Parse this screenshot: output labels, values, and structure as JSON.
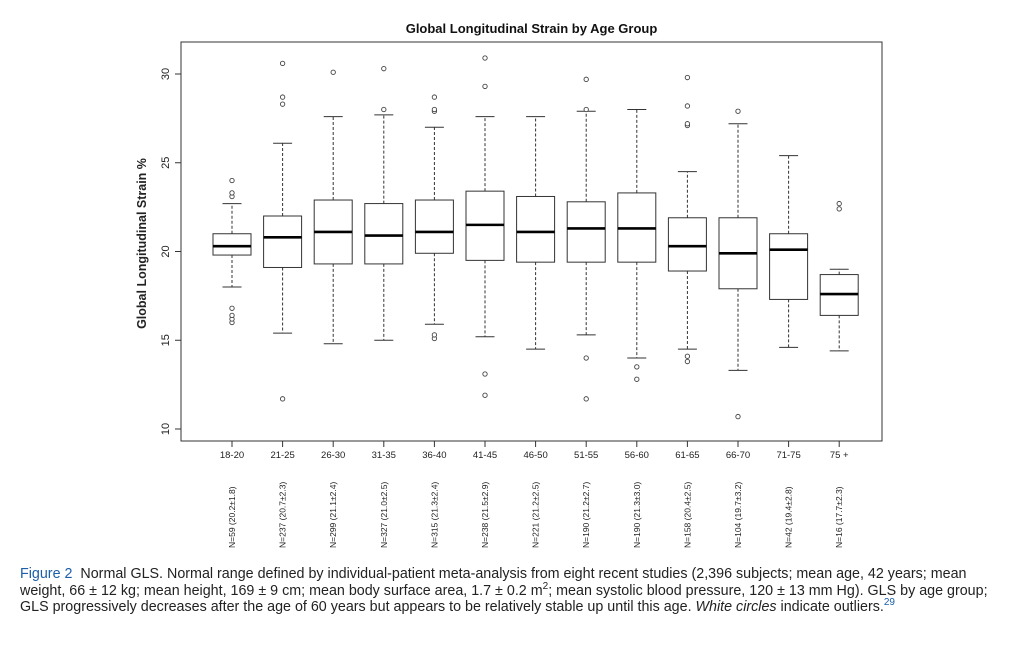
{
  "chart_data": {
    "type": "boxplot",
    "title": "Global Longitudinal Strain by Age Group",
    "ylabel": "Global Longitudinal Strain %",
    "xlabel": "",
    "ylim": [
      10,
      32
    ],
    "yticks": [
      "10",
      "15",
      "20",
      "25",
      "30"
    ],
    "grid": false,
    "groups": [
      {
        "label": "18-20",
        "n_label": "N=59 (20.2±1.8)",
        "whisker_low": 18.0,
        "q1": 19.8,
        "median": 20.3,
        "q3": 21.0,
        "whisker_high": 22.7,
        "outliers": [
          16.0,
          16.2,
          16.4,
          16.8,
          23.1,
          23.3,
          24.0
        ]
      },
      {
        "label": "21-25",
        "n_label": "N=237 (20.7±2.3)",
        "whisker_low": 15.4,
        "q1": 19.1,
        "median": 20.8,
        "q3": 22.0,
        "whisker_high": 26.1,
        "outliers": [
          11.7,
          28.3,
          28.7,
          30.6
        ]
      },
      {
        "label": "26-30",
        "n_label": "N=299 (21.1±2.4)",
        "whisker_low": 14.8,
        "q1": 19.3,
        "median": 21.1,
        "q3": 22.9,
        "whisker_high": 27.6,
        "outliers": [
          30.1
        ]
      },
      {
        "label": "31-35",
        "n_label": "N=327 (21.0±2.5)",
        "whisker_low": 15.0,
        "q1": 19.3,
        "median": 20.9,
        "q3": 22.7,
        "whisker_high": 27.7,
        "outliers": [
          28.0,
          30.3
        ]
      },
      {
        "label": "36-40",
        "n_label": "N=315 (21.3±2.4)",
        "whisker_low": 15.9,
        "q1": 19.9,
        "median": 21.1,
        "q3": 22.9,
        "whisker_high": 27.0,
        "outliers": [
          15.1,
          15.3,
          27.9,
          28.0,
          28.7
        ]
      },
      {
        "label": "41-45",
        "n_label": "N=238 (21.5±2.9)",
        "whisker_low": 15.2,
        "q1": 19.5,
        "median": 21.5,
        "q3": 23.4,
        "whisker_high": 27.6,
        "outliers": [
          11.9,
          13.1,
          29.3,
          30.9
        ]
      },
      {
        "label": "46-50",
        "n_label": "N=221 (21.2±2.5)",
        "whisker_low": 14.5,
        "q1": 19.4,
        "median": 21.1,
        "q3": 23.1,
        "whisker_high": 27.6,
        "outliers": []
      },
      {
        "label": "51-55",
        "n_label": "N=190 (21.2±2.7)",
        "whisker_low": 15.3,
        "q1": 19.4,
        "median": 21.3,
        "q3": 22.8,
        "whisker_high": 27.9,
        "outliers": [
          11.7,
          14.0,
          28.0,
          29.7
        ]
      },
      {
        "label": "56-60",
        "n_label": "N=190 (21.3±3.0)",
        "whisker_low": 14.0,
        "q1": 19.4,
        "median": 21.3,
        "q3": 23.3,
        "whisker_high": 28.0,
        "outliers": [
          12.8,
          13.5
        ]
      },
      {
        "label": "61-65",
        "n_label": "N=158 (20.4±2.5)",
        "whisker_low": 14.5,
        "q1": 18.9,
        "median": 20.3,
        "q3": 21.9,
        "whisker_high": 24.5,
        "outliers": [
          13.8,
          14.1,
          27.1,
          27.2,
          28.2,
          29.8
        ]
      },
      {
        "label": "66-70",
        "n_label": "N=104 (19.7±3.2)",
        "whisker_low": 13.3,
        "q1": 17.9,
        "median": 19.9,
        "q3": 21.9,
        "whisker_high": 27.2,
        "outliers": [
          10.7,
          27.9
        ]
      },
      {
        "label": "71-75",
        "n_label": "N=42 (19.4±2.8)",
        "whisker_low": 14.6,
        "q1": 17.3,
        "median": 20.1,
        "q3": 21.0,
        "whisker_high": 25.4,
        "outliers": []
      },
      {
        "label": "75 +",
        "n_label": "N=16 (17.7±2.3)",
        "whisker_low": 14.4,
        "q1": 16.4,
        "median": 17.6,
        "q3": 18.7,
        "whisker_high": 19.0,
        "outliers": [
          22.4,
          22.7
        ]
      }
    ]
  },
  "caption": {
    "label": "Figure 2",
    "text_1": "Normal GLS. Normal range defined by individual-patient meta-analysis from eight recent studies (2,396 subjects; mean age, 42 years; mean weight, 66 ± 12 kg; mean height, 169 ± 9 cm; mean body surface area, 1.7 ± 0.2 m",
    "sup": "2",
    "text_2": "; mean systolic blood pressure, 120 ± 13 mm Hg). GLS by age group; GLS progressively decreases after the age of 60 years but appears to be relatively stable up until this age. ",
    "emphasis": "White circles",
    "text_3": " indicate outliers.",
    "ref": "29"
  }
}
